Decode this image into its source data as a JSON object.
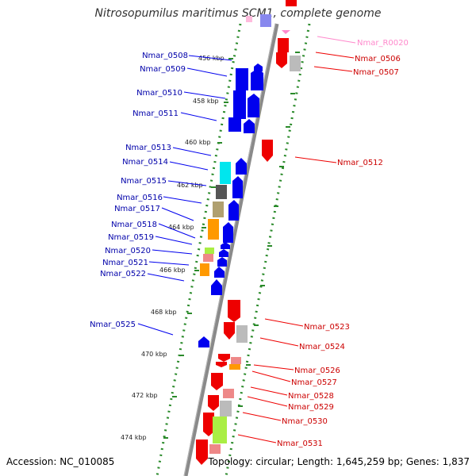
{
  "title": "Nitrosopumilus maritimus SCM1, complete genome",
  "footer": {
    "accession": "Accession: NC_010085",
    "summary": "Topology: circular; Length: 1,645,259 bp; Genes: 1,837"
  },
  "colors": {
    "forward": "#0000ee",
    "reverse": "#ee0000",
    "rna_label": "#ff88cc",
    "backbone": "#888888",
    "ticks": "#2a8a2a"
  },
  "scale_labels": [
    "456 kbp",
    "458 kbp",
    "460 kbp",
    "462 kbp",
    "464 kbp",
    "466 kbp",
    "468 kbp",
    "470 kbp",
    "472 kbp",
    "474 kbp"
  ],
  "genes_left": [
    {
      "label": "Nmar_0508"
    },
    {
      "label": "Nmar_0509"
    },
    {
      "label": "Nmar_0510"
    },
    {
      "label": "Nmar_0511"
    },
    {
      "label": "Nmar_0513"
    },
    {
      "label": "Nmar_0514"
    },
    {
      "label": "Nmar_0515"
    },
    {
      "label": "Nmar_0516"
    },
    {
      "label": "Nmar_0517"
    },
    {
      "label": "Nmar_0518"
    },
    {
      "label": "Nmar_0519"
    },
    {
      "label": "Nmar_0520"
    },
    {
      "label": "Nmar_0521"
    },
    {
      "label": "Nmar_0522"
    },
    {
      "label": "Nmar_0525"
    }
  ],
  "genes_right": [
    {
      "label": "Nmar_R0020"
    },
    {
      "label": "Nmar_0506"
    },
    {
      "label": "Nmar_0507"
    },
    {
      "label": "Nmar_0512"
    },
    {
      "label": "Nmar_0523"
    },
    {
      "label": "Nmar_0524"
    },
    {
      "label": "Nmar_0526"
    },
    {
      "label": "Nmar_0527"
    },
    {
      "label": "Nmar_0528"
    },
    {
      "label": "Nmar_0529"
    },
    {
      "label": "Nmar_0530"
    },
    {
      "label": "Nmar_0531"
    }
  ]
}
